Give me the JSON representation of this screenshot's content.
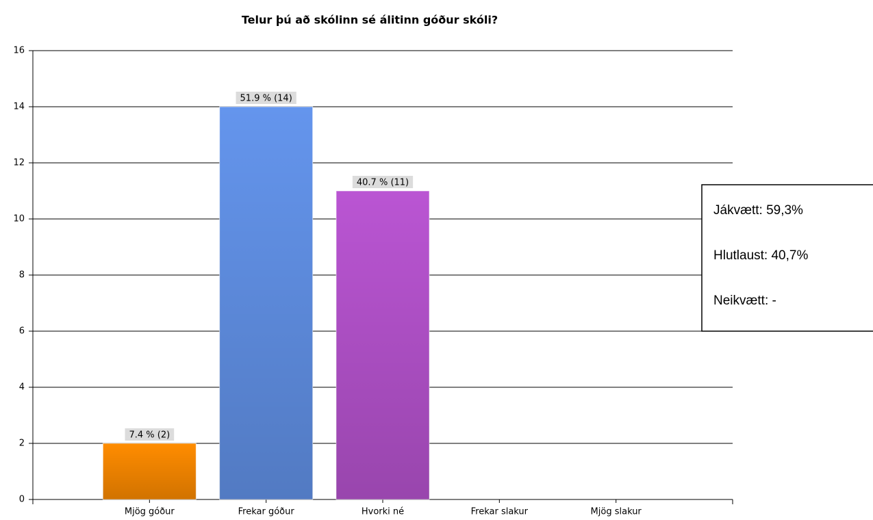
{
  "chart_data": {
    "type": "bar",
    "title": "Telur þú að skólinn sé álitinn góður skóli?",
    "categories": [
      "Mjög góður",
      "Frekar góður",
      "Hvorki né",
      "Frekar slakur",
      "Mjög slakur"
    ],
    "values": [
      2,
      14,
      11,
      0,
      0
    ],
    "value_labels": [
      "7.4 % (2)",
      "51.9 % (14)",
      "40.7 % (11)",
      null,
      null
    ],
    "colors": [
      "#ff8c00",
      "#6495ed",
      "#ba55d3",
      "#999999",
      "#999999"
    ],
    "ylim": [
      0,
      16
    ],
    "yticks": [
      0,
      2,
      4,
      6,
      8,
      10,
      12,
      14,
      16
    ],
    "grid": true,
    "annotation": [
      "Jákvætt: 59,3%",
      "Hlutlaust: 40,7%",
      "Neikvætt:  -"
    ]
  }
}
